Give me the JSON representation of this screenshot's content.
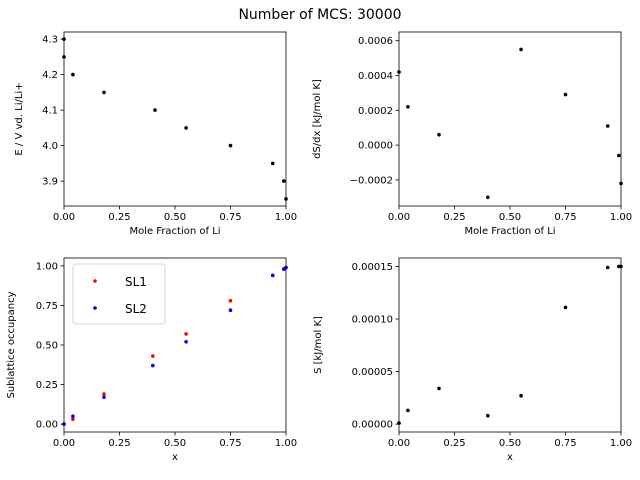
{
  "figure": {
    "title": "Number of MCS: 30000"
  },
  "chart_data": [
    {
      "type": "scatter",
      "xlabel": "Mole Fraction of Li",
      "ylabel": "E / V vd. Li/Li+",
      "xlim": [
        0.0,
        1.0
      ],
      "ylim": [
        3.83,
        4.32
      ],
      "xticks": [
        "0.00",
        "0.25",
        "0.50",
        "0.75",
        "1.00"
      ],
      "yticks": [
        "3.9",
        "4.0",
        "4.1",
        "4.2",
        "4.3"
      ],
      "ytick_values": [
        3.9,
        4.0,
        4.1,
        4.2,
        4.3
      ],
      "grid": false,
      "series": [
        {
          "color": "#000000",
          "x": [
            0.0,
            0.0,
            0.04,
            0.18,
            0.41,
            0.55,
            0.75,
            0.94,
            0.99,
            1.0
          ],
          "y": [
            4.3,
            4.25,
            4.2,
            4.15,
            4.1,
            4.05,
            4.0,
            3.95,
            3.9,
            3.85
          ]
        }
      ]
    },
    {
      "type": "scatter",
      "xlabel": "Mole Fraction of Li",
      "ylabel": "dS/dx [kJ/mol K]",
      "xlim": [
        0.0,
        1.0
      ],
      "ylim": [
        -0.00035,
        0.00065
      ],
      "xticks": [
        "0.00",
        "0.25",
        "0.50",
        "0.75",
        "1.00"
      ],
      "yticks": [
        "−0.0002",
        "0.0000",
        "0.0002",
        "0.0004",
        "0.0006"
      ],
      "ytick_values": [
        -0.0002,
        0.0,
        0.0002,
        0.0004,
        0.0006
      ],
      "grid": false,
      "series": [
        {
          "color": "#000000",
          "x": [
            0.0,
            0.04,
            0.18,
            0.4,
            0.55,
            0.75,
            0.94,
            0.99,
            1.0
          ],
          "y": [
            0.00042,
            0.00022,
            6e-05,
            -0.0003,
            0.00055,
            0.00029,
            0.00011,
            -6e-05,
            -0.00022
          ]
        }
      ]
    },
    {
      "type": "scatter",
      "xlabel": "x",
      "ylabel": "Sublattice occupancy",
      "xlim": [
        0.0,
        1.0
      ],
      "ylim": [
        -0.05,
        1.05
      ],
      "xticks": [
        "0.00",
        "0.25",
        "0.50",
        "0.75",
        "1.00"
      ],
      "yticks": [
        "0.00",
        "0.25",
        "0.50",
        "0.75",
        "1.00"
      ],
      "ytick_values": [
        0.0,
        0.25,
        0.5,
        0.75,
        1.0
      ],
      "grid": false,
      "legend": "top-left",
      "series": [
        {
          "name": "SL1",
          "color": "#ff0000",
          "x": [
            0.0,
            0.04,
            0.18,
            0.4,
            0.55,
            0.75,
            0.94,
            0.99,
            1.0
          ],
          "y": [
            0.0,
            0.03,
            0.19,
            0.43,
            0.57,
            0.78,
            0.94,
            0.98,
            0.99
          ]
        },
        {
          "name": "SL2",
          "color": "#0000ff",
          "x": [
            0.0,
            0.04,
            0.18,
            0.4,
            0.55,
            0.75,
            0.94,
            0.99,
            1.0
          ],
          "y": [
            0.0,
            0.05,
            0.17,
            0.37,
            0.52,
            0.72,
            0.94,
            0.98,
            0.99
          ]
        }
      ]
    },
    {
      "type": "scatter",
      "xlabel": "x",
      "ylabel": "S [kJ/mol K]",
      "xlim": [
        0.0,
        1.0
      ],
      "ylim": [
        -7.5e-06,
        0.000158
      ],
      "xticks": [
        "0.00",
        "0.25",
        "0.50",
        "0.75",
        "1.00"
      ],
      "yticks": [
        "0.00000",
        "0.00005",
        "0.00010",
        "0.00015"
      ],
      "ytick_values": [
        0.0,
        5e-05,
        0.0001,
        0.00015
      ],
      "grid": false,
      "series": [
        {
          "color": "#000000",
          "x": [
            0.0,
            0.04,
            0.18,
            0.4,
            0.55,
            0.75,
            0.94,
            0.99,
            1.0
          ],
          "y": [
            1e-06,
            1.3e-05,
            3.4e-05,
            8e-06,
            2.7e-05,
            0.000111,
            0.000149,
            0.00015,
            0.00015
          ]
        }
      ]
    }
  ]
}
